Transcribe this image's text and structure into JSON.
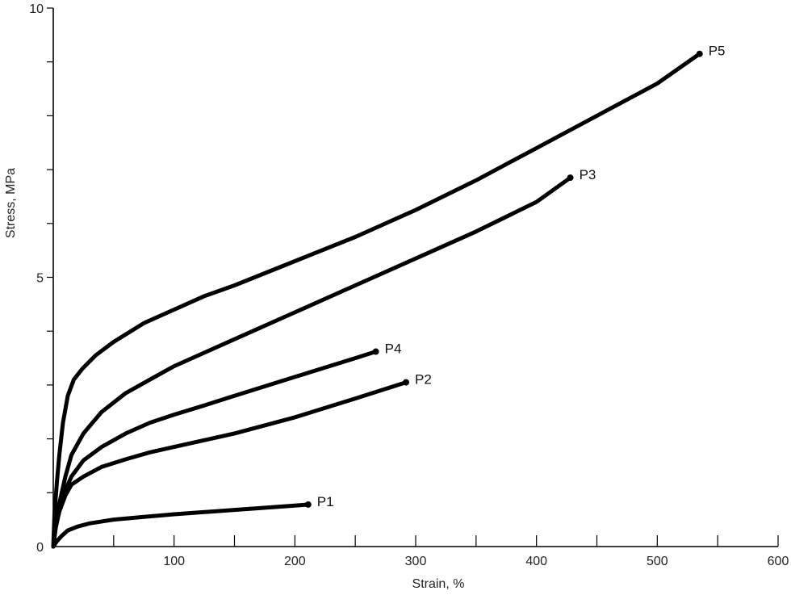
{
  "chart_data": {
    "type": "line",
    "xlabel": "Strain, %",
    "ylabel": "Stress, MPa",
    "xlim": [
      0,
      600
    ],
    "ylim": [
      0,
      10
    ],
    "x_ticks": [
      0,
      50,
      100,
      150,
      200,
      250,
      300,
      350,
      400,
      450,
      500,
      550,
      600
    ],
    "x_tick_labels": [
      "",
      "",
      "100",
      "",
      "200",
      "",
      "300",
      "",
      "400",
      "",
      "500",
      "",
      "600"
    ],
    "y_ticks": [
      0,
      1,
      2,
      3,
      4,
      5,
      6,
      7,
      8,
      9,
      10
    ],
    "y_tick_labels": [
      "0",
      "",
      "",
      "",
      "",
      "5",
      "",
      "",
      "",
      "",
      "10"
    ],
    "grid": false,
    "legend": "none",
    "series": [
      {
        "name": "P5",
        "x": [
          0,
          1,
          3,
          5,
          8,
          12,
          17,
          24,
          35,
          50,
          75,
          100,
          125,
          150,
          200,
          250,
          300,
          350,
          400,
          450,
          500,
          535
        ],
        "y": [
          0,
          0.6,
          1.2,
          1.7,
          2.3,
          2.8,
          3.1,
          3.3,
          3.55,
          3.8,
          4.15,
          4.4,
          4.65,
          4.85,
          5.3,
          5.75,
          6.25,
          6.8,
          7.4,
          8.0,
          8.6,
          9.15
        ]
      },
      {
        "name": "P3",
        "x": [
          0,
          2,
          5,
          10,
          15,
          25,
          40,
          60,
          80,
          100,
          125,
          150,
          200,
          250,
          300,
          350,
          400,
          428
        ],
        "y": [
          0,
          0.4,
          0.8,
          1.3,
          1.7,
          2.1,
          2.5,
          2.85,
          3.1,
          3.35,
          3.6,
          3.85,
          4.35,
          4.85,
          5.35,
          5.85,
          6.4,
          6.85
        ]
      },
      {
        "name": "P4",
        "x": [
          0,
          2,
          5,
          10,
          15,
          25,
          40,
          60,
          80,
          100,
          125,
          150,
          200,
          250,
          267
        ],
        "y": [
          0,
          0.35,
          0.7,
          1.05,
          1.3,
          1.6,
          1.85,
          2.1,
          2.3,
          2.45,
          2.62,
          2.8,
          3.15,
          3.5,
          3.62
        ]
      },
      {
        "name": "P2",
        "x": [
          0,
          2,
          5,
          10,
          15,
          25,
          40,
          60,
          80,
          100,
          150,
          200,
          250,
          292
        ],
        "y": [
          0,
          0.35,
          0.65,
          0.95,
          1.15,
          1.3,
          1.48,
          1.62,
          1.75,
          1.85,
          2.1,
          2.4,
          2.75,
          3.05
        ]
      },
      {
        "name": "P1",
        "x": [
          0,
          3,
          7,
          12,
          20,
          30,
          50,
          75,
          100,
          150,
          200,
          211
        ],
        "y": [
          0,
          0.1,
          0.2,
          0.3,
          0.37,
          0.43,
          0.5,
          0.55,
          0.6,
          0.68,
          0.76,
          0.78
        ]
      }
    ]
  }
}
